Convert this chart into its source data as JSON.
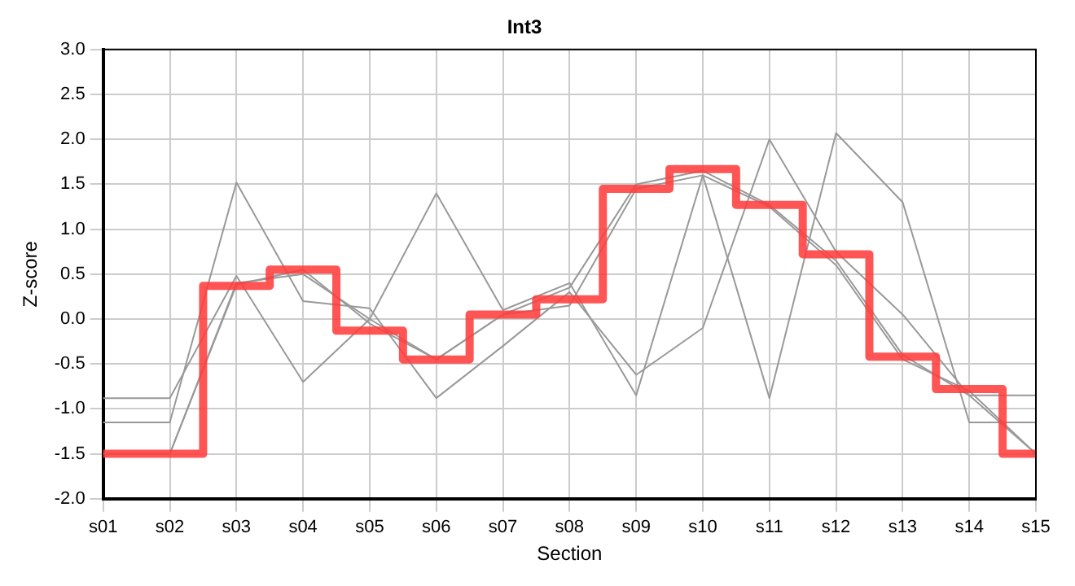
{
  "chart_data": {
    "type": "line",
    "title": "Int3",
    "xlabel": "Section",
    "ylabel": "Z-score",
    "categories": [
      "s01",
      "s02",
      "s03",
      "s04",
      "s05",
      "s06",
      "s07",
      "s08",
      "s09",
      "s10",
      "s11",
      "s12",
      "s13",
      "s14",
      "s15"
    ],
    "ylim": [
      -2,
      3
    ],
    "yticks": [
      {
        "value": -2,
        "label": "-2.0"
      },
      {
        "value": -1.5,
        "label": "-1.5"
      },
      {
        "value": -1,
        "label": "-1.0"
      },
      {
        "value": -0.5,
        "label": "-0.5"
      },
      {
        "value": 0,
        "label": "0.0"
      },
      {
        "value": 0.5,
        "label": "0.5"
      },
      {
        "value": 1,
        "label": "1.0"
      },
      {
        "value": 1.5,
        "label": "1.5"
      },
      {
        "value": 2,
        "label": "2.0"
      },
      {
        "value": 2.5,
        "label": "2.5"
      },
      {
        "value": 3,
        "label": "3.0"
      }
    ],
    "grid": true,
    "legend": false,
    "marker": "none",
    "series": [
      {
        "type": "line",
        "color": "#999999",
        "values": [
          -1.15,
          -1.15,
          1.52,
          0.2,
          0.12,
          -0.88,
          -0.3,
          0.3,
          -0.62,
          -0.1,
          2.0,
          0.75,
          0.05,
          -0.85,
          -0.85
        ]
      },
      {
        "type": "line",
        "color": "#999999",
        "values": [
          -0.88,
          -0.88,
          0.48,
          -0.7,
          0.0,
          1.4,
          0.1,
          0.4,
          -0.85,
          1.6,
          -0.88,
          2.07,
          1.3,
          -1.15,
          -1.15
        ]
      },
      {
        "type": "line",
        "color": "#999999",
        "values": [
          -1.5,
          -1.5,
          0.38,
          0.55,
          -0.05,
          -0.45,
          0.05,
          0.35,
          1.5,
          1.65,
          1.27,
          0.65,
          -0.4,
          -0.85,
          -1.5
        ]
      },
      {
        "type": "line",
        "color": "#999999",
        "values": [
          -1.5,
          -1.5,
          0.4,
          0.5,
          0.0,
          -0.45,
          0.05,
          0.15,
          1.45,
          1.6,
          1.25,
          0.6,
          -0.45,
          -0.8,
          -1.5
        ]
      },
      {
        "type": "step",
        "color": "#ff3b3b",
        "values": [
          -1.5,
          -1.5,
          0.37,
          0.55,
          -0.13,
          -0.45,
          0.05,
          0.22,
          1.45,
          1.67,
          1.27,
          0.72,
          -0.42,
          -0.78,
          -1.5
        ]
      }
    ]
  }
}
